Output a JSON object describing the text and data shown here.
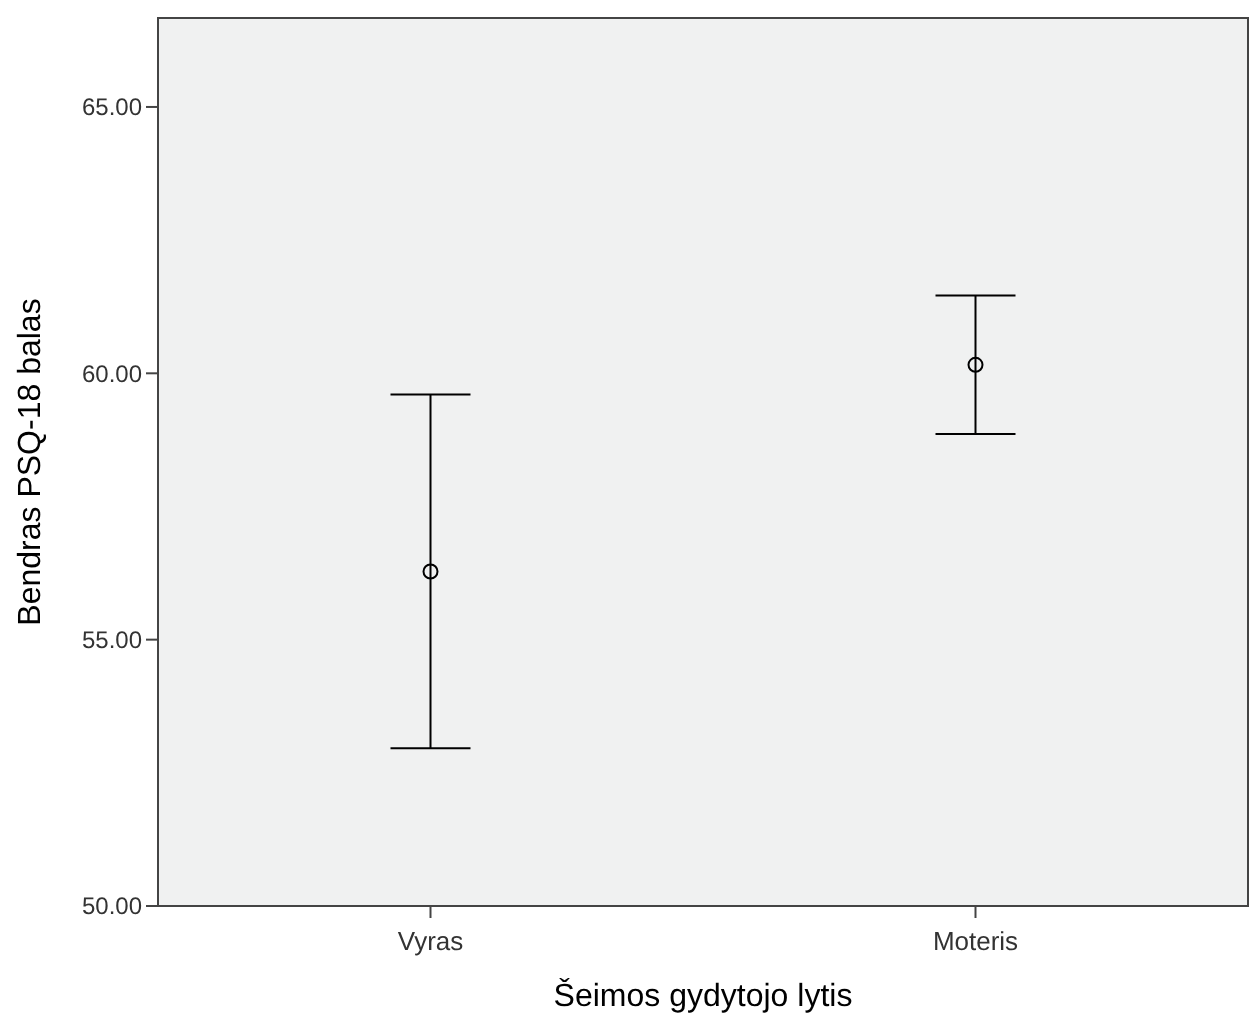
{
  "chart_data": {
    "type": "scatter",
    "xlabel": "Šeimos gydytojo lytis",
    "ylabel": "Bendras PSQ-18 balas",
    "categories": [
      "Vyras",
      "Moteris"
    ],
    "series": [
      {
        "color": "#000000",
        "values": [
          56.28,
          60.16
        ],
        "errors": [
          3.32,
          1.3
        ]
      }
    ],
    "ylim": [
      50,
      66.67
    ],
    "yticks": [
      {
        "value": 50,
        "label": "50.00"
      },
      {
        "value": 55,
        "label": "55.00"
      },
      {
        "value": 60,
        "label": "60.00"
      },
      {
        "value": 65,
        "label": "65.00"
      }
    ],
    "marker": "circle"
  }
}
